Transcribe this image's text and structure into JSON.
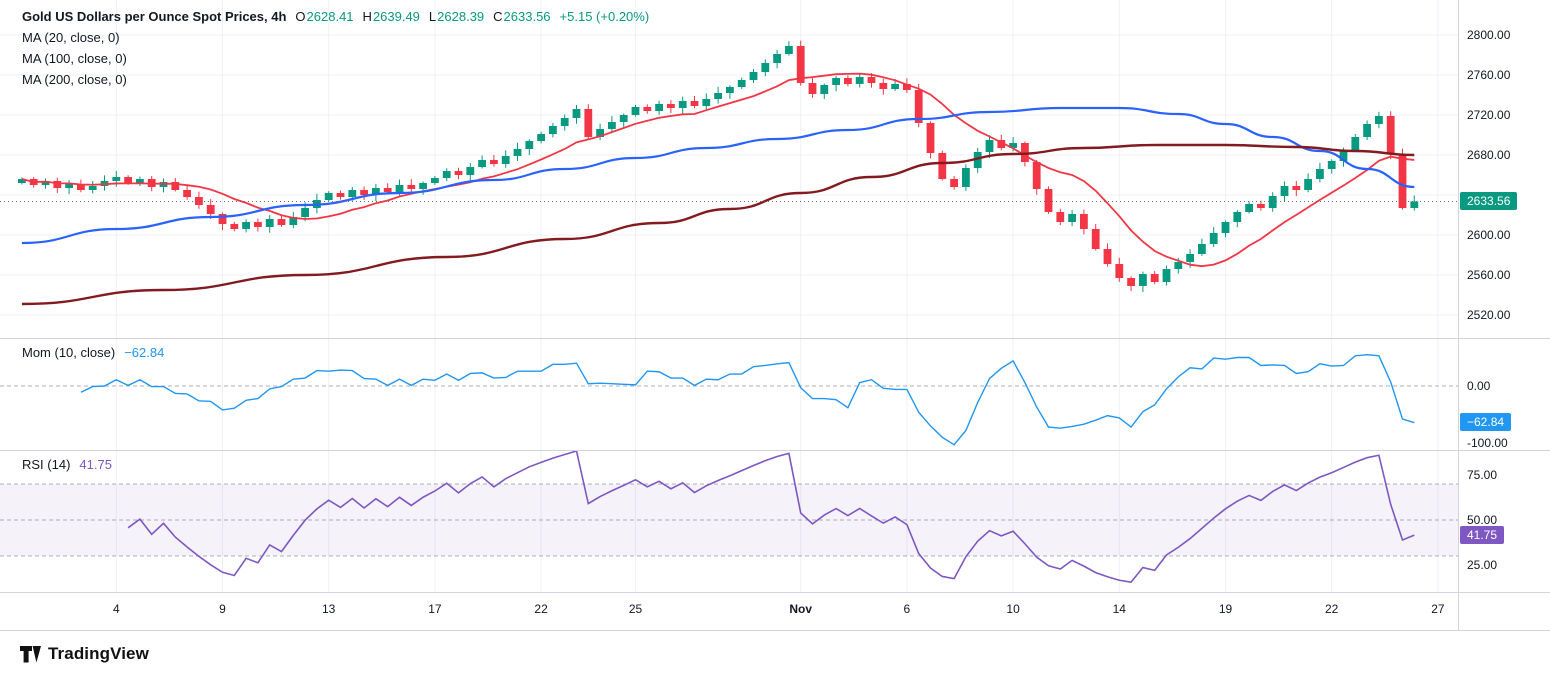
{
  "header": {
    "title": "Gold US Dollars per Ounce Spot Prices, 4h",
    "ohlc": [
      {
        "k": "O",
        "v": "2628.41"
      },
      {
        "k": "H",
        "v": "2639.49"
      },
      {
        "k": "L",
        "v": "2628.39"
      },
      {
        "k": "C",
        "v": "2633.56"
      }
    ],
    "change": "+5.15 (+0.20%)",
    "ma_labels": [
      "MA (20, close, 0)",
      "MA (100, close, 0)",
      "MA (200, close, 0)"
    ]
  },
  "mom_legend": {
    "label": "Mom (10, close)",
    "value": "−62.84"
  },
  "rsi_legend": {
    "label": "RSI (14)",
    "value": "41.75"
  },
  "footer": {
    "brand": "TradingView"
  },
  "colors": {
    "up": "#089981",
    "down": "#F23645",
    "ma20": "#F23645",
    "ma100": "#2962FF",
    "ma200": "#831A1F",
    "mom": "#2196F3",
    "rsi": "#7E57C2",
    "rsi_band": "rgba(126,87,194,0.08)",
    "dash": "#8b8f9b",
    "grid": "#eef0f6",
    "divider": "#d1d4dc",
    "last_price_line": "#6a6d78",
    "badge_price": "#089981",
    "badge_mom": "#2196F3",
    "badge_rsi": "#7E57C2",
    "text": "#131722"
  },
  "axis": {
    "main_grid": [
      2800,
      2760,
      2720,
      2680,
      2640,
      2600,
      2560,
      2520
    ],
    "main_ticks": [
      {
        "v": 2800,
        "t": "2800.00"
      },
      {
        "v": 2760,
        "t": "2760.00"
      },
      {
        "v": 2720,
        "t": "2720.00"
      },
      {
        "v": 2680,
        "t": "2680.00"
      },
      {
        "v": 2600,
        "t": "2600.00"
      },
      {
        "v": 2560,
        "t": "2560.00"
      },
      {
        "v": 2520,
        "t": "2520.00"
      }
    ],
    "mom_ticks": [
      {
        "v": 0,
        "t": "0.00"
      },
      {
        "v": -100,
        "t": "-100.00"
      }
    ],
    "rsi_ticks": [
      {
        "v": 75,
        "t": "75.00"
      },
      {
        "v": 50,
        "t": "50.00"
      },
      {
        "v": 25,
        "t": "25.00"
      }
    ]
  },
  "badges": [
    {
      "panel": "main",
      "t": "2633.56",
      "v": 2633.56
    },
    {
      "panel": "mom",
      "t": "−62.84",
      "v": -62.84
    },
    {
      "panel": "rsi",
      "t": "41.75",
      "v": 41.75
    }
  ],
  "time_axis": [
    [
      "4",
      8,
      0
    ],
    [
      "9",
      17,
      0
    ],
    [
      "13",
      26,
      0
    ],
    [
      "17",
      35,
      0
    ],
    [
      "22",
      44,
      0
    ],
    [
      "25",
      52,
      0
    ],
    [
      "Nov",
      66,
      1
    ],
    [
      "6",
      75,
      0
    ],
    [
      "10",
      84,
      0
    ],
    [
      "14",
      93,
      0
    ],
    [
      "19",
      102,
      0
    ],
    [
      "22",
      111,
      0
    ],
    [
      "27",
      120,
      0
    ]
  ],
  "chart_data": {
    "type": "candlestick",
    "title": "Gold US Dollars per Ounce Spot Prices, 4h",
    "timeframe": "4h",
    "legend_position": "top-left",
    "grid": true,
    "last_bar": {
      "o": 2628.41,
      "h": 2639.49,
      "l": 2628.39,
      "c": 2633.56,
      "change": 5.15,
      "change_pct": 0.2
    },
    "main_panel": {
      "ylim": [
        2497,
        2835
      ],
      "first_open": 2652,
      "last_price": 2633.56,
      "closes": [
        2656,
        2650,
        2654,
        2647,
        2651,
        2645,
        2649,
        2654,
        2658,
        2652,
        2656,
        2648,
        2653,
        2645,
        2638,
        2630,
        2621,
        2611,
        2606,
        2613,
        2608,
        2616,
        2610,
        2618,
        2627,
        2635,
        2642,
        2638,
        2645,
        2640,
        2647,
        2643,
        2650,
        2646,
        2652,
        2657,
        2664,
        2660,
        2668,
        2675,
        2671,
        2679,
        2686,
        2694,
        2701,
        2709,
        2717,
        2726,
        2698,
        2706,
        2713,
        2720,
        2728,
        2724,
        2731,
        2727,
        2734,
        2729,
        2736,
        2742,
        2748,
        2755,
        2763,
        2772,
        2781,
        2789,
        2752,
        2741,
        2750,
        2757,
        2751,
        2758,
        2752,
        2746,
        2751,
        2745,
        2712,
        2682,
        2656,
        2648,
        2667,
        2683,
        2695,
        2687,
        2692,
        2673,
        2646,
        2623,
        2613,
        2621,
        2606,
        2586,
        2571,
        2557,
        2549,
        2561,
        2553,
        2566,
        2573,
        2581,
        2591,
        2602,
        2613,
        2623,
        2631,
        2627,
        2639,
        2649,
        2645,
        2656,
        2666,
        2674,
        2685,
        2698,
        2711,
        2719,
        2681,
        2627,
        2633.56
      ],
      "ma20_window_bars": 10,
      "ma100": [
        [
          0,
          2592
        ],
        [
          8,
          2606
        ],
        [
          16,
          2618
        ],
        [
          24,
          2630
        ],
        [
          32,
          2642
        ],
        [
          40,
          2655
        ],
        [
          46,
          2666
        ],
        [
          52,
          2677
        ],
        [
          58,
          2687
        ],
        [
          64,
          2696
        ],
        [
          70,
          2705
        ],
        [
          76,
          2716
        ],
        [
          82,
          2723
        ],
        [
          88,
          2727
        ],
        [
          93,
          2727
        ],
        [
          98,
          2721
        ],
        [
          102,
          2711
        ],
        [
          106,
          2698
        ],
        [
          110,
          2684
        ],
        [
          114,
          2666
        ],
        [
          118,
          2648
        ]
      ],
      "ma200": [
        [
          0,
          2531
        ],
        [
          12,
          2545
        ],
        [
          24,
          2560
        ],
        [
          36,
          2578
        ],
        [
          46,
          2596
        ],
        [
          54,
          2612
        ],
        [
          60,
          2626
        ],
        [
          66,
          2642
        ],
        [
          72,
          2658
        ],
        [
          78,
          2672
        ],
        [
          84,
          2681
        ],
        [
          90,
          2687
        ],
        [
          96,
          2690
        ],
        [
          102,
          2690
        ],
        [
          108,
          2688
        ],
        [
          113,
          2684
        ],
        [
          118,
          2680
        ]
      ]
    },
    "mom_panel": {
      "type": "line",
      "label": "Mom (10, close)",
      "last": -62.84,
      "lookback_bars": 5,
      "ylim": [
        -112,
        84
      ],
      "zero_line": 0
    },
    "rsi_panel": {
      "type": "line",
      "label": "RSI (14)",
      "last": 41.75,
      "period_bars": 9,
      "band": [
        30,
        70
      ],
      "mid": 50,
      "ylim": [
        10,
        89
      ]
    }
  }
}
